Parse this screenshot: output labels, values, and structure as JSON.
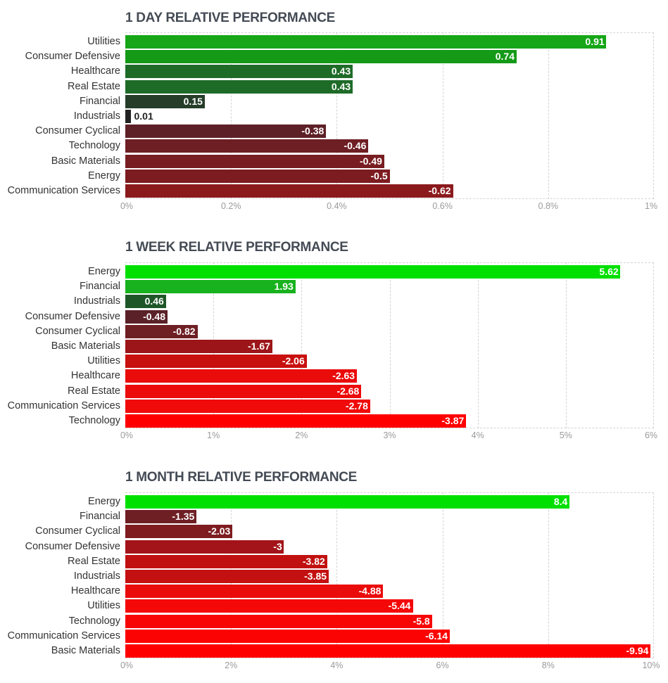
{
  "chart_data": [
    {
      "type": "bar",
      "orientation": "horizontal",
      "title": "1 DAY RELATIVE PERFORMANCE",
      "categories": [
        "Utilities",
        "Consumer Defensive",
        "Healthcare",
        "Real Estate",
        "Financial",
        "Industrials",
        "Consumer Cyclical",
        "Technology",
        "Basic Materials",
        "Energy",
        "Communication Services"
      ],
      "values": [
        0.91,
        0.74,
        0.43,
        0.43,
        0.15,
        0.01,
        -0.38,
        -0.46,
        -0.49,
        -0.5,
        -0.62
      ],
      "value_labels": [
        "0.91",
        "0.74",
        "0.43",
        "0.43",
        "0.15",
        "0.01",
        "-0.38",
        "-0.46",
        "-0.49",
        "-0.5",
        "-0.62"
      ],
      "colors": [
        "#16a618",
        "#159a18",
        "#1e6b28",
        "#1e6b28",
        "#253d29",
        "#222222",
        "#5e2027",
        "#6e1f24",
        "#781d21",
        "#7c1c20",
        "#8b1a1d"
      ],
      "xlim": [
        0,
        1
      ],
      "xticks": [
        "0%",
        "0.2%",
        "0.4%",
        "0.6%",
        "0.8%",
        "1%"
      ],
      "xlabel": "",
      "ylabel": ""
    },
    {
      "type": "bar",
      "orientation": "horizontal",
      "title": "1 WEEK RELATIVE PERFORMANCE",
      "categories": [
        "Energy",
        "Financial",
        "Industrials",
        "Consumer Defensive",
        "Consumer Cyclical",
        "Basic Materials",
        "Utilities",
        "Healthcare",
        "Real Estate",
        "Communication Services",
        "Technology"
      ],
      "values": [
        5.62,
        1.93,
        0.46,
        -0.48,
        -0.82,
        -1.67,
        -2.06,
        -2.63,
        -2.68,
        -2.78,
        -3.87
      ],
      "value_labels": [
        "5.62",
        "1.93",
        "0.46",
        "-0.48",
        "-0.82",
        "-1.67",
        "-2.06",
        "-2.63",
        "-2.68",
        "-2.78",
        "-3.87"
      ],
      "colors": [
        "#00e000",
        "#18b21e",
        "#1e5628",
        "#5a2228",
        "#6e1f24",
        "#9c1519",
        "#c8100f",
        "#ea0b0b",
        "#ec0b0b",
        "#f00a0a",
        "#ff0000"
      ],
      "xlim": [
        0,
        6
      ],
      "xticks": [
        "0%",
        "1%",
        "2%",
        "3%",
        "4%",
        "5%",
        "6%"
      ],
      "xlabel": "",
      "ylabel": ""
    },
    {
      "type": "bar",
      "orientation": "horizontal",
      "title": "1 MONTH RELATIVE PERFORMANCE",
      "categories": [
        "Energy",
        "Financial",
        "Consumer Cyclical",
        "Consumer Defensive",
        "Real Estate",
        "Industrials",
        "Healthcare",
        "Utilities",
        "Technology",
        "Communication Services",
        "Basic Materials"
      ],
      "values": [
        8.4,
        -1.35,
        -2.03,
        -3,
        -3.82,
        -3.85,
        -4.88,
        -5.44,
        -5.8,
        -6.14,
        -9.94
      ],
      "value_labels": [
        "8.4",
        "-1.35",
        "-2.03",
        "-3",
        "-3.82",
        "-3.85",
        "-4.88",
        "-5.44",
        "-5.8",
        "-6.14",
        "-9.94"
      ],
      "colors": [
        "#00e000",
        "#6e1f24",
        "#7e1c20",
        "#a3141a",
        "#c01110",
        "#c41010",
        "#ea0b0b",
        "#f40808",
        "#f80606",
        "#fc0303",
        "#ff0000"
      ],
      "xlim": [
        0,
        10
      ],
      "xticks": [
        "0%",
        "2%",
        "4%",
        "6%",
        "8%",
        "10%"
      ],
      "xlabel": "",
      "ylabel": ""
    }
  ]
}
